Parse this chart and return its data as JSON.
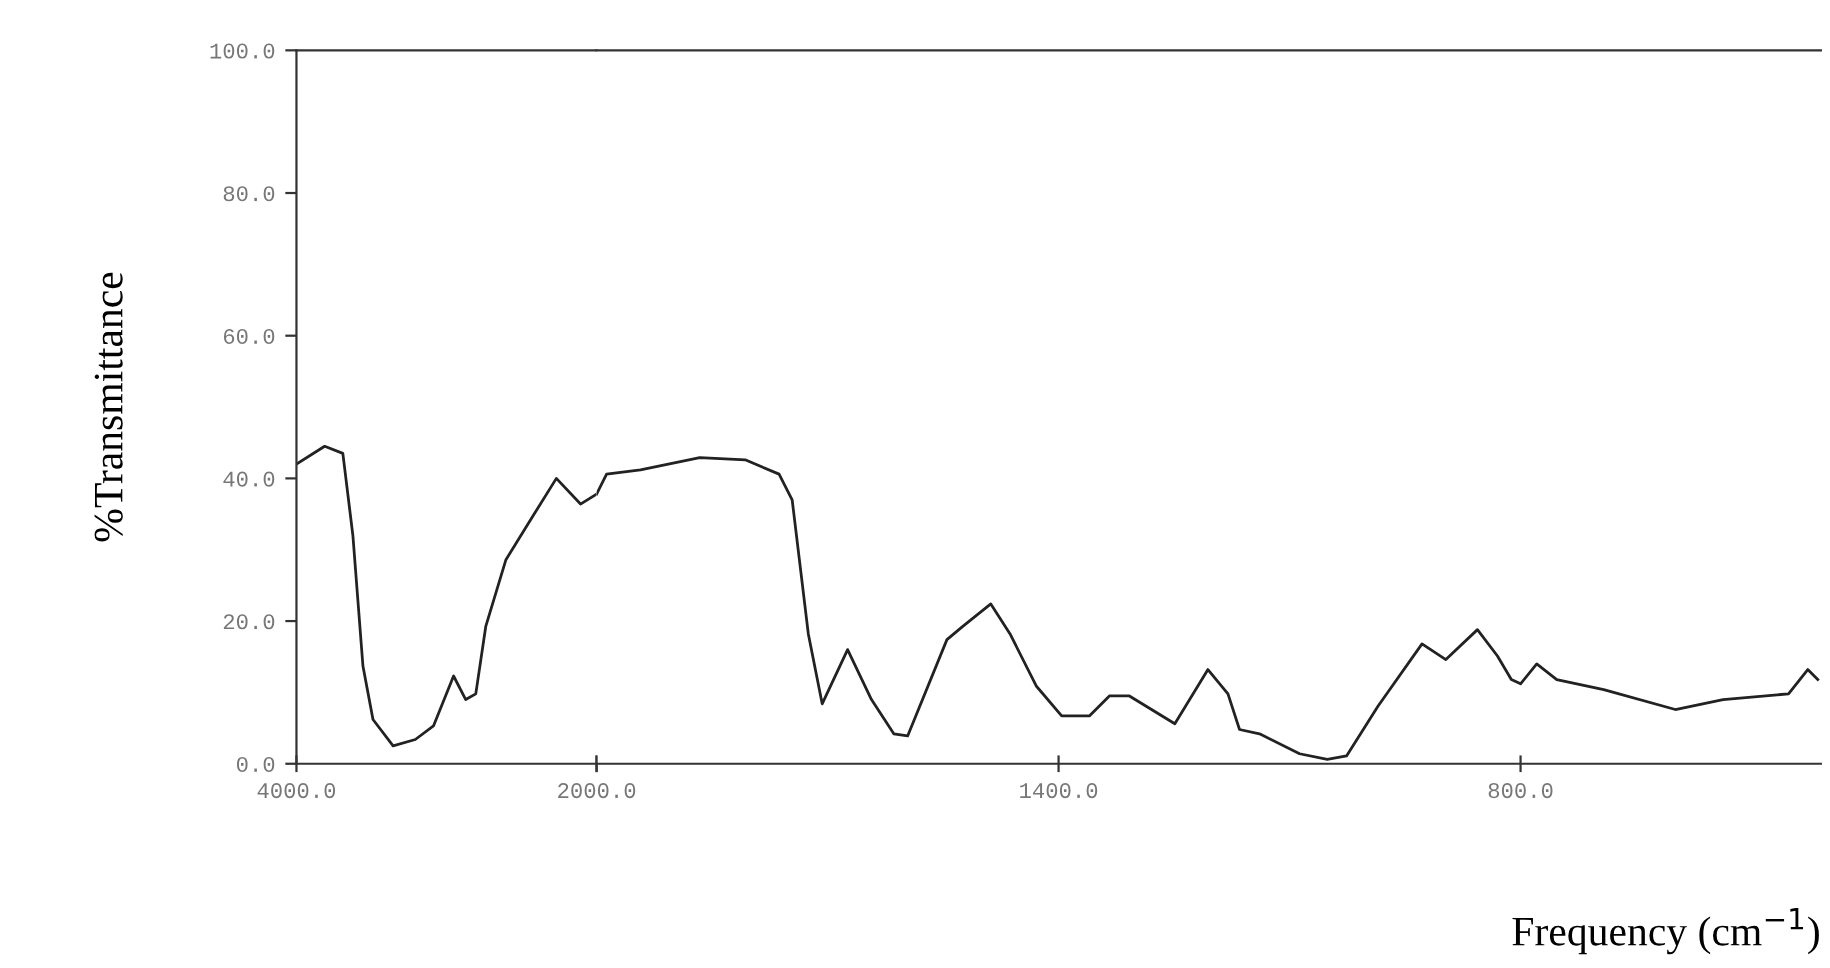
{
  "chart_data": [
    {
      "type": "line",
      "ylabel": "%Transmittance",
      "xlim": [
        4000,
        2000
      ],
      "ylim": [
        0,
        100
      ],
      "xticks": [
        {
          "value": 4000,
          "label": "4000.0"
        },
        {
          "value": 2000,
          "label": "2000.0"
        }
      ],
      "yticks": [
        {
          "value": 0,
          "label": "0.0"
        },
        {
          "value": 20,
          "label": "20.0"
        },
        {
          "value": 40,
          "label": "40.0"
        },
        {
          "value": 60,
          "label": "60.0"
        },
        {
          "value": 80,
          "label": "80.0"
        },
        {
          "value": 100,
          "label": "100.0"
        }
      ],
      "marker": "none",
      "line_style": "solid",
      "series": [
        {
          "color": "#222222",
          "x": [
            4000,
            3812,
            3691,
            3624,
            3557,
            3490,
            3356,
            3208,
            3087,
            2953,
            2872,
            2805,
            2738,
            2604,
            2416,
            2268,
            2107,
            2000
          ],
          "values": [
            42,
            44.5,
            43.5,
            32,
            13.7,
            6.2,
            2.5,
            3.4,
            5.3,
            12.3,
            9,
            9.8,
            19.3,
            28.6,
            35,
            40,
            36.4,
            37.8
          ]
        }
      ]
    },
    {
      "type": "line",
      "xlabel": "Frequency (cm$^{−1}$)",
      "xlim": [
        2000,
        410
      ],
      "ylim": [
        0,
        100
      ],
      "xticks": [
        {
          "value": 2000,
          "label": null
        },
        {
          "value": 1400,
          "label": "1400.0"
        },
        {
          "value": 800,
          "label": "800.0"
        }
      ],
      "tick_labels": "x",
      "marker": "none",
      "line_style": "solid",
      "series": [
        {
          "color": "#222222",
          "x": [
            2000,
            1987,
            1943,
            1866,
            1807,
            1763,
            1746,
            1725,
            1707,
            1674,
            1643,
            1614,
            1596,
            1545,
            1524,
            1488,
            1463,
            1429,
            1396,
            1360,
            1334,
            1308,
            1249,
            1206,
            1180,
            1165,
            1139,
            1087,
            1051,
            1026,
            985,
            928,
            897,
            856,
            830,
            812,
            800,
            779,
            753,
            692,
            599,
            537,
            452,
            427,
            414
          ],
          "values": [
            37.8,
            40.6,
            41.2,
            42.9,
            42.6,
            40.6,
            37,
            18.2,
            8.4,
            16,
            9,
            4.2,
            3.9,
            17.4,
            19.3,
            22.4,
            18.2,
            10.9,
            6.7,
            6.7,
            9.5,
            9.5,
            5.6,
            13.2,
            9.8,
            4.8,
            4.2,
            1.4,
            0.6,
            1.1,
            8.1,
            16.8,
            14.6,
            18.8,
            15.1,
            11.8,
            11.2,
            14,
            11.8,
            10.4,
            7.6,
            9,
            9.8,
            13.2,
            11.8
          ]
        }
      ]
    }
  ]
}
